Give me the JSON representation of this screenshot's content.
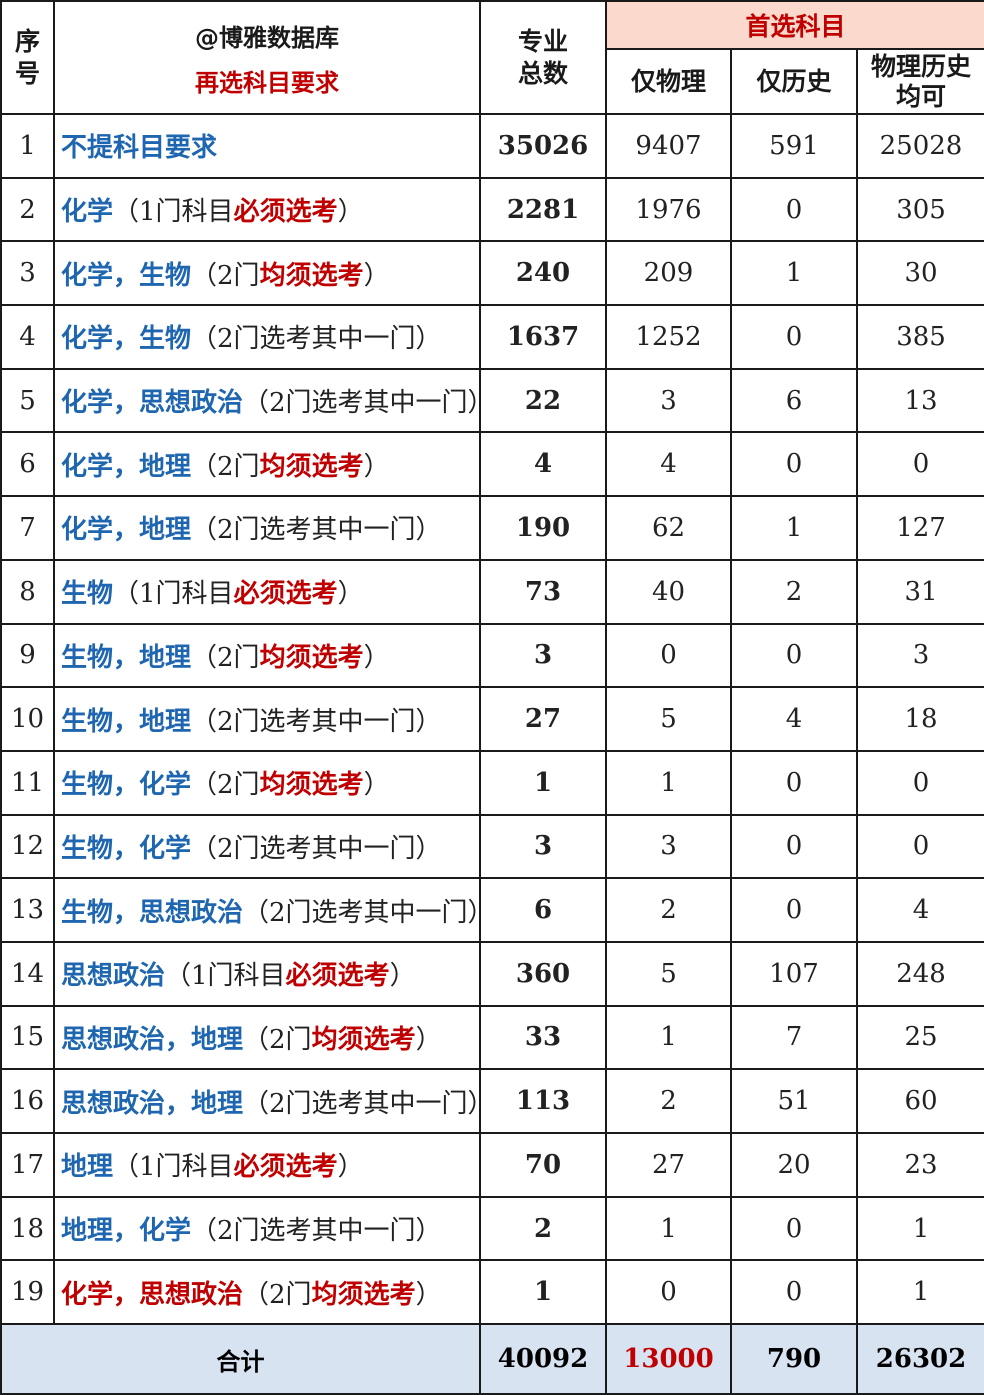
{
  "header": {
    "seq": "序号",
    "brand": "@博雅数据库",
    "subtitle": "再选科目要求",
    "total": "专业总数",
    "group": "首选科目",
    "col_physics": "仅物理",
    "col_history": "仅历史",
    "col_either": "物理历史均可"
  },
  "rows": [
    {
      "seq": "1",
      "subjects": "不提科目要求",
      "paren_open": "",
      "mid": "",
      "req": "",
      "paren_close": "",
      "total": "35026",
      "physics": "9407",
      "history": "591",
      "either": "25028"
    },
    {
      "seq": "2",
      "subjects": "化学",
      "paren_open": "（1门科目",
      "mid": "",
      "req": "必须选考",
      "paren_close": "）",
      "total": "2281",
      "physics": "1976",
      "history": "0",
      "either": "305"
    },
    {
      "seq": "3",
      "subjects": "化学，生物",
      "paren_open": "（2门",
      "mid": "",
      "req": "均须选考",
      "paren_close": "）",
      "total": "240",
      "physics": "209",
      "history": "1",
      "either": "30"
    },
    {
      "seq": "4",
      "subjects": "化学，生物",
      "paren_open": "（2门选考其中一门）",
      "mid": "",
      "req": "",
      "paren_close": "",
      "total": "1637",
      "physics": "1252",
      "history": "0",
      "either": "385"
    },
    {
      "seq": "5",
      "subjects": "化学，思想政治",
      "paren_open": "（2门选考其中一门）",
      "mid": "",
      "req": "",
      "paren_close": "",
      "total": "22",
      "physics": "3",
      "history": "6",
      "either": "13"
    },
    {
      "seq": "6",
      "subjects": "化学，地理",
      "paren_open": "（2门",
      "mid": "",
      "req": "均须选考",
      "paren_close": "）",
      "total": "4",
      "physics": "4",
      "history": "0",
      "either": "0"
    },
    {
      "seq": "7",
      "subjects": "化学，地理",
      "paren_open": "（2门选考其中一门）",
      "mid": "",
      "req": "",
      "paren_close": "",
      "total": "190",
      "physics": "62",
      "history": "1",
      "either": "127"
    },
    {
      "seq": "8",
      "subjects": "生物",
      "paren_open": "（1门科目",
      "mid": "",
      "req": "必须选考",
      "paren_close": "）",
      "total": "73",
      "physics": "40",
      "history": "2",
      "either": "31"
    },
    {
      "seq": "9",
      "subjects": "生物，地理",
      "paren_open": "（2门",
      "mid": "",
      "req": "均须选考",
      "paren_close": "）",
      "total": "3",
      "physics": "0",
      "history": "0",
      "either": "3"
    },
    {
      "seq": "10",
      "subjects": "生物，地理",
      "paren_open": "（2门选考其中一门）",
      "mid": "",
      "req": "",
      "paren_close": "",
      "total": "27",
      "physics": "5",
      "history": "4",
      "either": "18"
    },
    {
      "seq": "11",
      "subjects": "生物，化学",
      "paren_open": "（2门",
      "mid": "",
      "req": "均须选考",
      "paren_close": "）",
      "total": "1",
      "physics": "1",
      "history": "0",
      "either": "0"
    },
    {
      "seq": "12",
      "subjects": "生物，化学",
      "paren_open": "（2门选考其中一门）",
      "mid": "",
      "req": "",
      "paren_close": "",
      "total": "3",
      "physics": "3",
      "history": "0",
      "either": "0"
    },
    {
      "seq": "13",
      "subjects": "生物，思想政治",
      "paren_open": "（2门选考其中一门）",
      "mid": "",
      "req": "",
      "paren_close": "",
      "total": "6",
      "physics": "2",
      "history": "0",
      "either": "4"
    },
    {
      "seq": "14",
      "subjects": "思想政治",
      "paren_open": "（1门科目",
      "mid": "",
      "req": "必须选考",
      "paren_close": "）",
      "total": "360",
      "physics": "5",
      "history": "107",
      "either": "248"
    },
    {
      "seq": "15",
      "subjects": "思想政治，地理",
      "paren_open": "（2门",
      "mid": "",
      "req": "均须选考",
      "paren_close": "）",
      "total": "33",
      "physics": "1",
      "history": "7",
      "either": "25"
    },
    {
      "seq": "16",
      "subjects": "思想政治，地理",
      "paren_open": "（2门选考其中一门）",
      "mid": "",
      "req": "",
      "paren_close": "",
      "total": "113",
      "physics": "2",
      "history": "51",
      "either": "60"
    },
    {
      "seq": "17",
      "subjects": "地理",
      "paren_open": "（1门科目",
      "mid": "",
      "req": "必须选考",
      "paren_close": "）",
      "total": "70",
      "physics": "27",
      "history": "20",
      "either": "23"
    },
    {
      "seq": "18",
      "subjects": "地理，化学",
      "paren_open": "（2门选考其中一门）",
      "mid": "",
      "req": "",
      "paren_close": "",
      "total": "2",
      "physics": "1",
      "history": "0",
      "either": "1"
    },
    {
      "seq": "19",
      "subjects": "化学，思想政治",
      "paren_open": "（2门",
      "mid": "",
      "req": "均须选考",
      "paren_close": "）",
      "total": "1",
      "physics": "0",
      "history": "0",
      "either": "1",
      "subject_color": "red"
    }
  ],
  "summary": {
    "label": "合计",
    "total": "40092",
    "physics": "13000",
    "history": "790",
    "either": "26302"
  },
  "colors": {
    "blue": "#1f66b0",
    "red": "#c00000",
    "header_pink": "#fbd9cc",
    "summary_blue": "#d8e3f2"
  }
}
